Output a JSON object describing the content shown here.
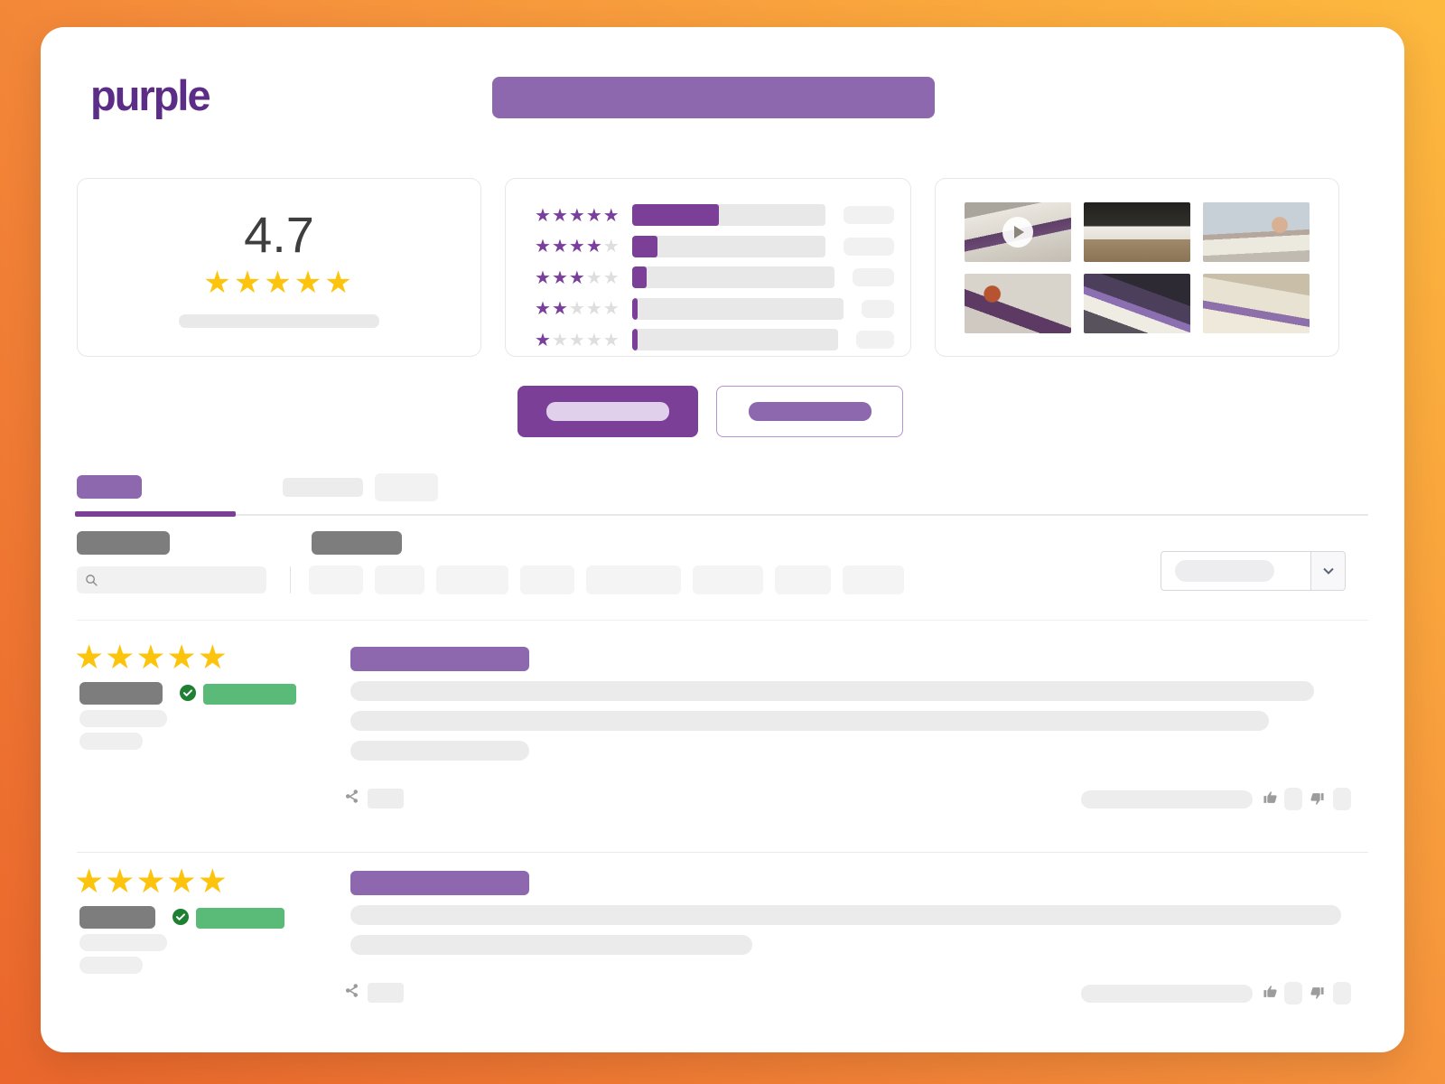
{
  "brand": {
    "logo_text": "purple"
  },
  "rating_summary": {
    "average": "4.7",
    "stars_filled": 5,
    "stars_total": 5
  },
  "rating_histogram": {
    "rows": [
      {
        "stars": 5,
        "fill_pct": 45,
        "count_pill_w": 56
      },
      {
        "stars": 4,
        "fill_pct": 13,
        "count_pill_w": 56
      },
      {
        "stars": 3,
        "fill_pct": 7,
        "count_pill_w": 46
      },
      {
        "stars": 2,
        "fill_pct": 2.5,
        "count_pill_w": 36
      },
      {
        "stars": 1,
        "fill_pct": 2.5,
        "count_pill_w": 42
      }
    ]
  },
  "gallery": {
    "items": [
      {
        "kind": "video",
        "name": "mattress-video-thumbnail"
      },
      {
        "kind": "photo",
        "name": "mattress-on-bedframe-photo"
      },
      {
        "kind": "photo",
        "name": "woman-lying-on-mattress-photo"
      },
      {
        "kind": "photo",
        "name": "mattress-unboxing-photo"
      },
      {
        "kind": "photo",
        "name": "man-resting-on-mattress-photo"
      },
      {
        "kind": "photo",
        "name": "adjustable-bed-photo"
      }
    ]
  },
  "filters": {
    "chip_widths": [
      60,
      55,
      80,
      60,
      105,
      78,
      62,
      68
    ]
  },
  "reviews": [
    {
      "rating": 5,
      "verified": true,
      "name_w": 92,
      "badge_w": 103,
      "title_w": 198,
      "body_line_widths": [
        1067,
        1017,
        198
      ],
      "meta_widths": [
        97,
        70
      ]
    },
    {
      "rating": 5,
      "verified": true,
      "name_w": 84,
      "badge_w": 98,
      "title_w": 198,
      "body_line_widths": [
        1097,
        445
      ],
      "meta_widths": [
        97,
        70
      ]
    }
  ],
  "colors": {
    "background_gradient_start": "#ea662c",
    "background_gradient_end": "#fdb93e",
    "brand_purple": "#5c2d87",
    "accent_purple": "#7b3f98",
    "secondary_purple": "#8d68ae",
    "star_gold": "#fcc40d",
    "star_purple": "#7a3f9d",
    "verified_badge_green": "#5abb78",
    "verified_check_green": "#1e8032",
    "placeholder_gray": "#ebebeb",
    "label_dark_gray": "#7d7d7d"
  }
}
